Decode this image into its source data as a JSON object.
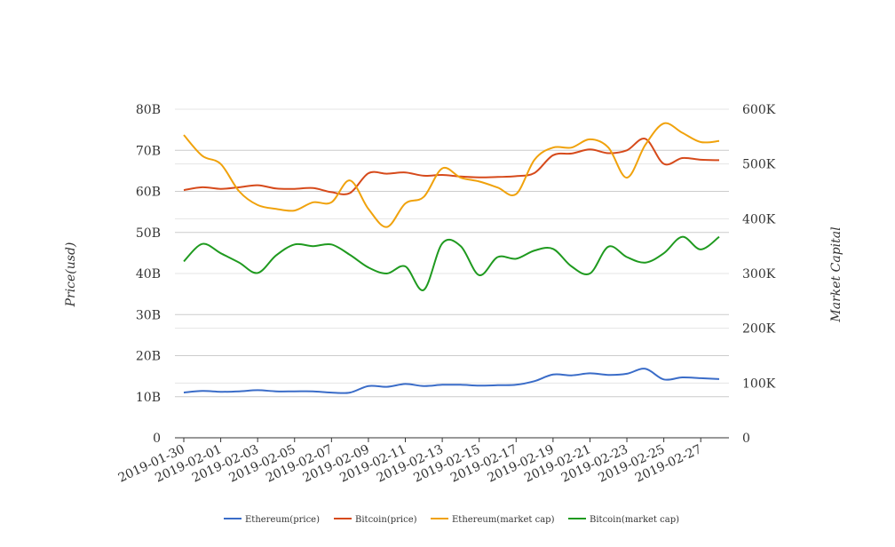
{
  "chart_data": {
    "type": "line",
    "xlabel": "",
    "ylabel_left": "Price(usd)",
    "ylabel_right": "Market Capital",
    "x": [
      "2019-01-30",
      "2019-01-31",
      "2019-02-01",
      "2019-02-02",
      "2019-02-03",
      "2019-02-04",
      "2019-02-05",
      "2019-02-06",
      "2019-02-07",
      "2019-02-08",
      "2019-02-09",
      "2019-02-10",
      "2019-02-11",
      "2019-02-12",
      "2019-02-13",
      "2019-02-14",
      "2019-02-15",
      "2019-02-16",
      "2019-02-17",
      "2019-02-18",
      "2019-02-19",
      "2019-02-20",
      "2019-02-21",
      "2019-02-22",
      "2019-02-23",
      "2019-02-24",
      "2019-02-25",
      "2019-02-26",
      "2019-02-27",
      "2019-02-28"
    ],
    "x_tick_labels": [
      "2019-01-30",
      "2019-02-01",
      "2019-02-03",
      "2019-02-05",
      "2019-02-07",
      "2019-02-09",
      "2019-02-11",
      "2019-02-13",
      "2019-02-15",
      "2019-02-17",
      "2019-02-19",
      "2019-02-21",
      "2019-02-23",
      "2019-02-25",
      "2019-02-27"
    ],
    "y_left": {
      "range": [
        0,
        80
      ],
      "unit": "B",
      "ticks": [
        0,
        10,
        20,
        30,
        40,
        50,
        60,
        70,
        80
      ],
      "tick_labels": [
        "0",
        "10B",
        "20B",
        "30B",
        "40B",
        "50B",
        "60B",
        "70B",
        "80B"
      ]
    },
    "y_right": {
      "range": [
        0,
        600
      ],
      "unit": "K",
      "ticks": [
        0,
        100,
        200,
        300,
        400,
        500,
        600
      ],
      "tick_labels": [
        "0",
        "100K",
        "200K",
        "300K",
        "400K",
        "500K",
        "600K"
      ]
    },
    "grid": true,
    "legend_position": "bottom",
    "series": [
      {
        "name": "Ethereum(price)",
        "axis": "left",
        "color": "#3a6cc8",
        "values": [
          11.0,
          11.4,
          11.2,
          11.3,
          11.6,
          11.3,
          11.3,
          11.3,
          11.0,
          11.0,
          12.6,
          12.4,
          13.1,
          12.6,
          12.9,
          12.9,
          12.7,
          12.8,
          12.9,
          13.8,
          15.4,
          15.2,
          15.7,
          15.3,
          15.6,
          16.8,
          14.2,
          14.7,
          14.5,
          14.3
        ]
      },
      {
        "name": "Bitcoin(price)",
        "axis": "left",
        "color": "#d64a1b",
        "values": [
          60.3,
          61.0,
          60.6,
          61.0,
          61.5,
          60.7,
          60.6,
          60.8,
          59.8,
          59.6,
          64.4,
          64.3,
          64.6,
          63.8,
          64.0,
          63.6,
          63.4,
          63.5,
          63.7,
          64.5,
          68.8,
          69.2,
          70.2,
          69.3,
          70.0,
          72.8,
          66.7,
          68.1,
          67.7,
          67.6
        ]
      },
      {
        "name": "Ethereum(market cap)",
        "axis": "right",
        "color": "#f0a20c",
        "values": [
          553,
          515,
          500,
          450,
          425,
          418,
          415,
          430,
          430,
          470,
          418,
          385,
          428,
          440,
          492,
          475,
          468,
          457,
          445,
          508,
          530,
          530,
          545,
          530,
          475,
          535,
          574,
          557,
          540,
          542
        ]
      },
      {
        "name": "Bitcoin(market cap)",
        "axis": "right",
        "color": "#1f9a1f",
        "values": [
          322,
          354,
          337,
          320,
          301,
          333,
          353,
          350,
          353,
          334,
          311,
          300,
          313,
          270,
          355,
          350,
          297,
          330,
          327,
          342,
          345,
          313,
          300,
          349,
          330,
          320,
          337,
          367,
          344,
          367
        ]
      }
    ]
  }
}
